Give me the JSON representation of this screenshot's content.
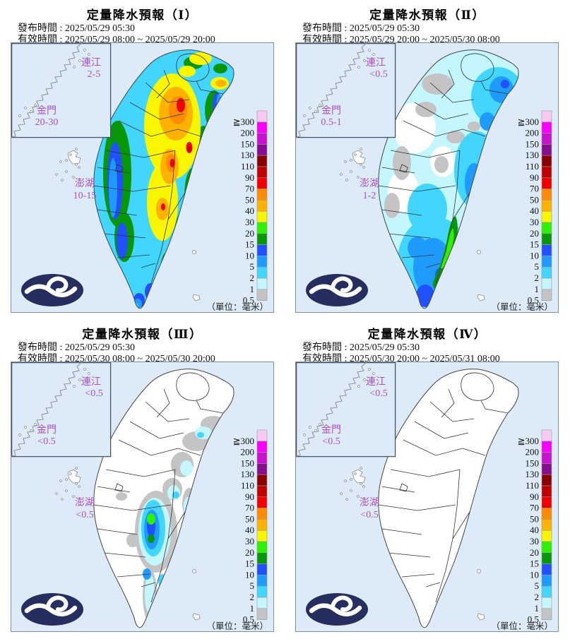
{
  "colors": {
    "sea": "#dcebf7",
    "map_border": "#7b8fa5",
    "island_fill_default": "#ffffff",
    "coastline": "#444444",
    "county_line": "#333333",
    "inset_border": "#49536b",
    "inset_coast": "#909090",
    "islet_outline": "#8c8c8c",
    "label_purple": "#ad4ec4",
    "logo_navy": "#252e5e"
  },
  "legend": {
    "unit_label": "（單位：毫米）",
    "entries": [
      {
        "label": "≧300",
        "color": "#f9c9f4"
      },
      {
        "label": "200",
        "color": "#fa00fa"
      },
      {
        "label": "150",
        "color": "#c813cf"
      },
      {
        "label": "130",
        "color": "#870c8e"
      },
      {
        "label": "110",
        "color": "#8b0000"
      },
      {
        "label": "90",
        "color": "#c00000"
      },
      {
        "label": "70",
        "color": "#f20000"
      },
      {
        "label": "50",
        "color": "#ff8c00"
      },
      {
        "label": "40",
        "color": "#ffb300"
      },
      {
        "label": "30",
        "color": "#faf500"
      },
      {
        "label": "20",
        "color": "#2ef104"
      },
      {
        "label": "15",
        "color": "#089708"
      },
      {
        "label": "10",
        "color": "#2050ff"
      },
      {
        "label": "5",
        "color": "#1f9bff"
      },
      {
        "label": "2",
        "color": "#42d6ff"
      },
      {
        "label": "1",
        "color": "#c3f6ff"
      },
      {
        "label": "0.5",
        "color": "#c4c4c4"
      }
    ]
  },
  "panels": [
    {
      "title": "定量降水預報（Ⅰ）",
      "issued_label": "發布時間 :",
      "issued": "2025/05/29 05:30",
      "valid_label": "有效時間 :",
      "valid": "2025/05/29 08:00 ~ 2025/05/29 20:00",
      "islands": {
        "lienchiang": {
          "name": "連江",
          "value": "2-5"
        },
        "kinmen": {
          "name": "金門",
          "value": "20-30"
        },
        "penghu": {
          "name": "澎湖",
          "value": "10-15"
        }
      }
    },
    {
      "title": "定量降水預報（Ⅱ）",
      "issued_label": "發布時間 :",
      "issued": "2025/05/29 05:30",
      "valid_label": "有效時間 :",
      "valid": "2025/05/29 20:00 ~ 2025/05/30 08:00",
      "islands": {
        "lienchiang": {
          "name": "連江",
          "value": "<0.5"
        },
        "kinmen": {
          "name": "金門",
          "value": "0.5-1"
        },
        "penghu": {
          "name": "澎湖",
          "value": "1-2"
        }
      }
    },
    {
      "title": "定量降水預報（Ⅲ）",
      "issued_label": "發布時間 :",
      "issued": "2025/05/29 05:30",
      "valid_label": "有效時間 :",
      "valid": "2025/05/30 08:00 ~ 2025/05/30 20:00",
      "islands": {
        "lienchiang": {
          "name": "連江",
          "value": "<0.5"
        },
        "kinmen": {
          "name": "金門",
          "value": "<0.5"
        },
        "penghu": {
          "name": "澎湖",
          "value": "<0.5"
        }
      }
    },
    {
      "title": "定量降水預報（Ⅳ）",
      "issued_label": "發布時間 :",
      "issued": "2025/05/29 05:30",
      "valid_label": "有效時間 :",
      "valid": "2025/05/30 20:00 ~ 2025/05/31 08:00",
      "islands": {
        "lienchiang": {
          "name": "連江",
          "value": "<0.5"
        },
        "kinmen": {
          "name": "金門",
          "value": "<0.5"
        },
        "penghu": {
          "name": "澎湖",
          "value": "<0.5"
        }
      }
    }
  ]
}
